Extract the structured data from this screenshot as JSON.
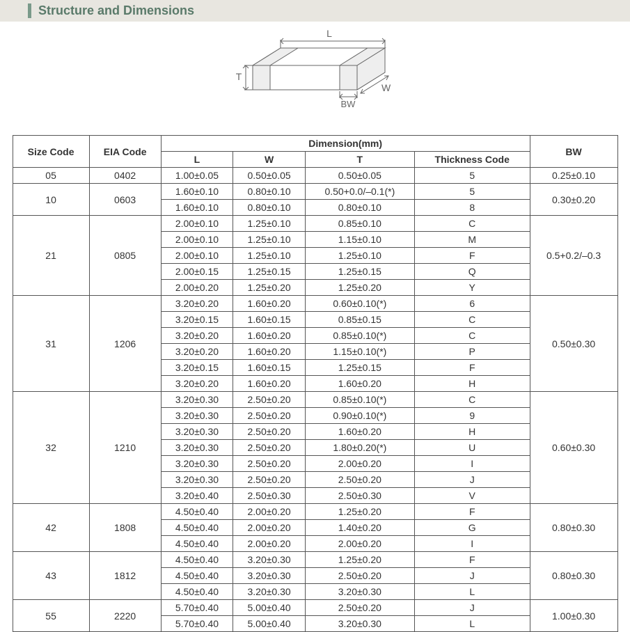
{
  "title": "Structure and Dimensions",
  "diagram": {
    "labels": {
      "L": "L",
      "W": "W",
      "T": "T",
      "BW": "BW"
    },
    "stroke": "#666666",
    "fill": "#ffffff",
    "label_color": "#666666"
  },
  "table": {
    "header": {
      "size_code": "Size Code",
      "eia_code": "EIA Code",
      "dimension": "Dimension(mm)",
      "L": "L",
      "W": "W",
      "T": "T",
      "thickness_code": "Thickness  Code",
      "BW": "BW"
    },
    "groups": [
      {
        "size_code": "05",
        "eia_code": "0402",
        "bw": "0.25±0.10",
        "rows": [
          {
            "L": "1.00±0.05",
            "W": "0.50±0.05",
            "T": "0.50±0.05",
            "tc": "5"
          }
        ]
      },
      {
        "size_code": "10",
        "eia_code": "0603",
        "bw": "0.30±0.20",
        "rows": [
          {
            "L": "1.60±0.10",
            "W": "0.80±0.10",
            "T": "0.50+0.0/–0.1(*)",
            "tc": "5"
          },
          {
            "L": "1.60±0.10",
            "W": "0.80±0.10",
            "T": "0.80±0.10",
            "tc": "8"
          }
        ]
      },
      {
        "size_code": "21",
        "eia_code": "0805",
        "bw": "0.5+0.2/–0.3",
        "rows": [
          {
            "L": "2.00±0.10",
            "W": "1.25±0.10",
            "T": "0.85±0.10",
            "tc": "C"
          },
          {
            "L": "2.00±0.10",
            "W": "1.25±0.10",
            "T": "1.15±0.10",
            "tc": "M"
          },
          {
            "L": "2.00±0.10",
            "W": "1.25±0.10",
            "T": "1.25±0.10",
            "tc": "F"
          },
          {
            "L": "2.00±0.15",
            "W": "1.25±0.15",
            "T": "1.25±0.15",
            "tc": "Q"
          },
          {
            "L": "2.00±0.20",
            "W": "1.25±0.20",
            "T": "1.25±0.20",
            "tc": "Y"
          }
        ]
      },
      {
        "size_code": "31",
        "eia_code": "1206",
        "bw": "0.50±0.30",
        "rows": [
          {
            "L": "3.20±0.20",
            "W": "1.60±0.20",
            "T": "0.60±0.10(*)",
            "tc": "6"
          },
          {
            "L": "3.20±0.15",
            "W": "1.60±0.15",
            "T": "0.85±0.15",
            "tc": "C"
          },
          {
            "L": "3.20±0.20",
            "W": "1.60±0.20",
            "T": "0.85±0.10(*)",
            "tc": "C"
          },
          {
            "L": "3.20±0.20",
            "W": "1.60±0.20",
            "T": "1.15±0.10(*)",
            "tc": "P"
          },
          {
            "L": "3.20±0.15",
            "W": "1.60±0.15",
            "T": "1.25±0.15",
            "tc": "F"
          },
          {
            "L": "3.20±0.20",
            "W": "1.60±0.20",
            "T": "1.60±0.20",
            "tc": "H"
          }
        ]
      },
      {
        "size_code": "32",
        "eia_code": "1210",
        "bw": "0.60±0.30",
        "rows": [
          {
            "L": "3.20±0.30",
            "W": "2.50±0.20",
            "T": "0.85±0.10(*)",
            "tc": "C"
          },
          {
            "L": "3.20±0.30",
            "W": "2.50±0.20",
            "T": "0.90±0.10(*)",
            "tc": "9"
          },
          {
            "L": "3.20±0.30",
            "W": "2.50±0.20",
            "T": "1.60±0.20",
            "tc": "H"
          },
          {
            "L": "3.20±0.30",
            "W": "2.50±0.20",
            "T": "1.80±0.20(*)",
            "tc": "U"
          },
          {
            "L": "3.20±0.30",
            "W": "2.50±0.20",
            "T": "2.00±0.20",
            "tc": "I"
          },
          {
            "L": "3.20±0.30",
            "W": "2.50±0.20",
            "T": "2.50±0.20",
            "tc": "J"
          },
          {
            "L": "3.20±0.40",
            "W": "2.50±0.30",
            "T": "2.50±0.30",
            "tc": "V"
          }
        ]
      },
      {
        "size_code": "42",
        "eia_code": "1808",
        "bw": "0.80±0.30",
        "rows": [
          {
            "L": "4.50±0.40",
            "W": "2.00±0.20",
            "T": "1.25±0.20",
            "tc": "F"
          },
          {
            "L": "4.50±0.40",
            "W": "2.00±0.20",
            "T": "1.40±0.20",
            "tc": "G"
          },
          {
            "L": "4.50±0.40",
            "W": "2.00±0.20",
            "T": "2.00±0.20",
            "tc": "I"
          }
        ]
      },
      {
        "size_code": "43",
        "eia_code": "1812",
        "bw": "0.80±0.30",
        "rows": [
          {
            "L": "4.50±0.40",
            "W": "3.20±0.30",
            "T": "1.25±0.20",
            "tc": "F"
          },
          {
            "L": "4.50±0.40",
            "W": "3.20±0.30",
            "T": "2.50±0.20",
            "tc": "J"
          },
          {
            "L": "4.50±0.40",
            "W": "3.20±0.30",
            "T": "3.20±0.30",
            "tc": "L"
          }
        ]
      },
      {
        "size_code": "55",
        "eia_code": "2220",
        "bw": "1.00±0.30",
        "rows": [
          {
            "L": "5.70±0.40",
            "W": "5.00±0.40",
            "T": "2.50±0.20",
            "tc": "J"
          },
          {
            "L": "5.70±0.40",
            "W": "5.00±0.40",
            "T": "3.20±0.30",
            "tc": "L"
          }
        ]
      }
    ]
  },
  "colors": {
    "title_bg": "#e8e6e0",
    "title_accent": "#7a9a8a",
    "title_text": "#5a7a6a",
    "border": "#555555",
    "text": "#333333"
  }
}
